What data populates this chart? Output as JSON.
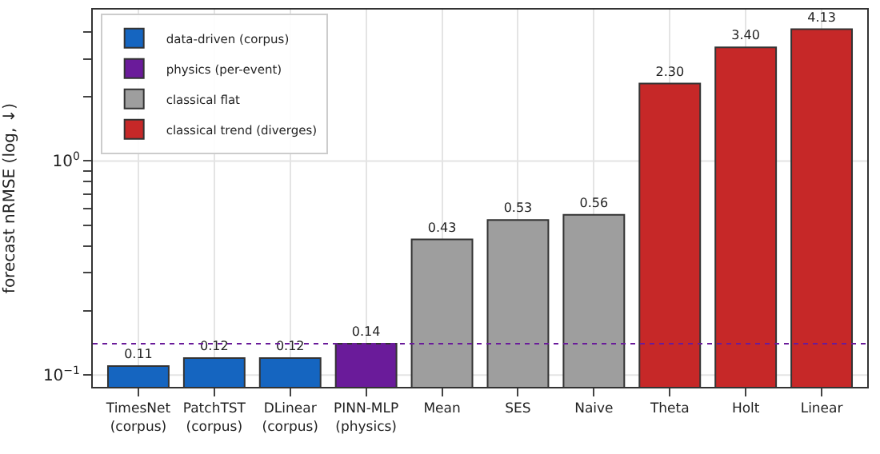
{
  "chart_data": {
    "type": "bar",
    "ylabel": "forecast nRMSE (log, ↓)",
    "categories": [
      "TimesNet\n(corpus)",
      "PatchTST\n(corpus)",
      "DLinear\n(corpus)",
      "PINN-MLP\n(physics)",
      "Mean",
      "SES",
      "Naive",
      "Theta",
      "Holt",
      "Linear"
    ],
    "series": [
      {
        "name": "data-driven (corpus)",
        "color": "#1565c0",
        "values": [
          0.11,
          0.12,
          0.12,
          null,
          null,
          null,
          null,
          null,
          null,
          null
        ],
        "value_labels": [
          "0.11",
          "0.12",
          "0.12",
          null,
          null,
          null,
          null,
          null,
          null,
          null
        ]
      },
      {
        "name": "physics (per-event)",
        "color": "#6a1b9a",
        "values": [
          null,
          null,
          null,
          0.14,
          null,
          null,
          null,
          null,
          null,
          null
        ],
        "value_labels": [
          null,
          null,
          null,
          "0.14",
          null,
          null,
          null,
          null,
          null,
          null
        ]
      },
      {
        "name": "classical flat",
        "color": "#9e9e9e",
        "values": [
          null,
          null,
          null,
          null,
          0.43,
          0.53,
          0.56,
          null,
          null,
          null
        ],
        "value_labels": [
          null,
          null,
          null,
          null,
          "0.43",
          "0.53",
          "0.56",
          null,
          null,
          null
        ]
      },
      {
        "name": "classical trend (diverges)",
        "color": "#c62828",
        "values": [
          null,
          null,
          null,
          null,
          null,
          null,
          null,
          2.3,
          3.4,
          4.13
        ],
        "value_labels": [
          null,
          null,
          null,
          null,
          null,
          null,
          null,
          "2.30",
          "3.40",
          "4.13"
        ]
      }
    ],
    "log": "y",
    "ylim": [
      0.088,
      5.1
    ],
    "yticks": [
      {
        "value": 0.1,
        "label": "10$^{−1}$"
      },
      {
        "value": 0.2,
        "label": null
      },
      {
        "value": 0.3,
        "label": null
      },
      {
        "value": 0.4,
        "label": null
      },
      {
        "value": 0.5,
        "label": null
      },
      {
        "value": 0.6,
        "label": null
      },
      {
        "value": 0.7,
        "label": null
      },
      {
        "value": 0.8,
        "label": null
      },
      {
        "value": 0.9,
        "label": null
      },
      {
        "value": 1,
        "label": "10$^{0}$"
      },
      {
        "value": 2,
        "label": null
      },
      {
        "value": 3,
        "label": null
      },
      {
        "value": 4,
        "label": null
      }
    ],
    "ref_lines": [
      {
        "axis": "y",
        "value": 0.14,
        "color": "#6a1b9a",
        "line_style": "dotted"
      }
    ],
    "grid": true,
    "legend": "top left"
  }
}
